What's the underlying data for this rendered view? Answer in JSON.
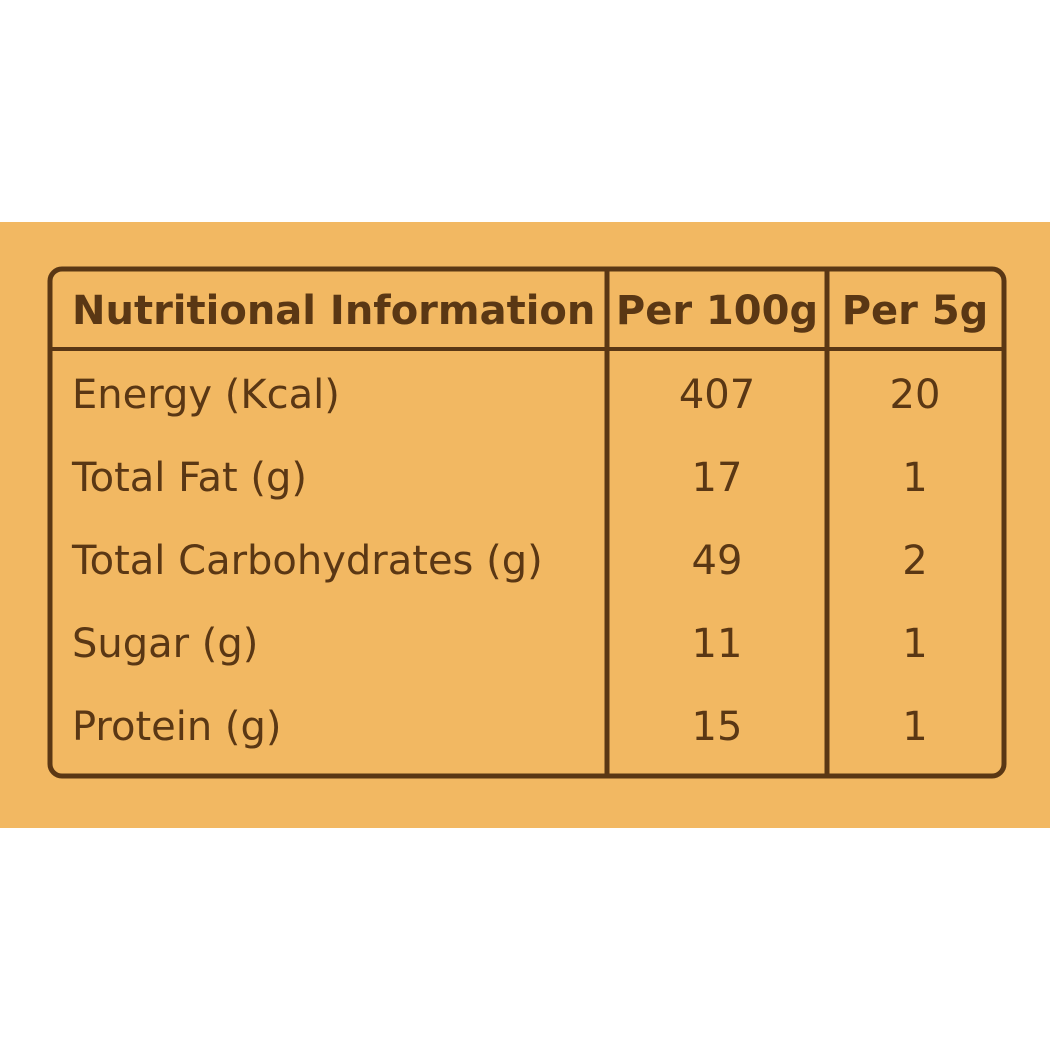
{
  "table": {
    "header": [
      "Nutritional Information",
      "Per 100g",
      "Per 5g"
    ],
    "rows": [
      [
        "Energy (Kcal)",
        "407",
        "20"
      ],
      [
        "Total Fat (g)",
        "17",
        "1"
      ],
      [
        "Total Carbohydrates (g)",
        "49",
        "2"
      ],
      [
        "Sugar (g)",
        "11",
        "1"
      ],
      [
        "Protein (g)",
        "15",
        "1"
      ]
    ]
  }
}
